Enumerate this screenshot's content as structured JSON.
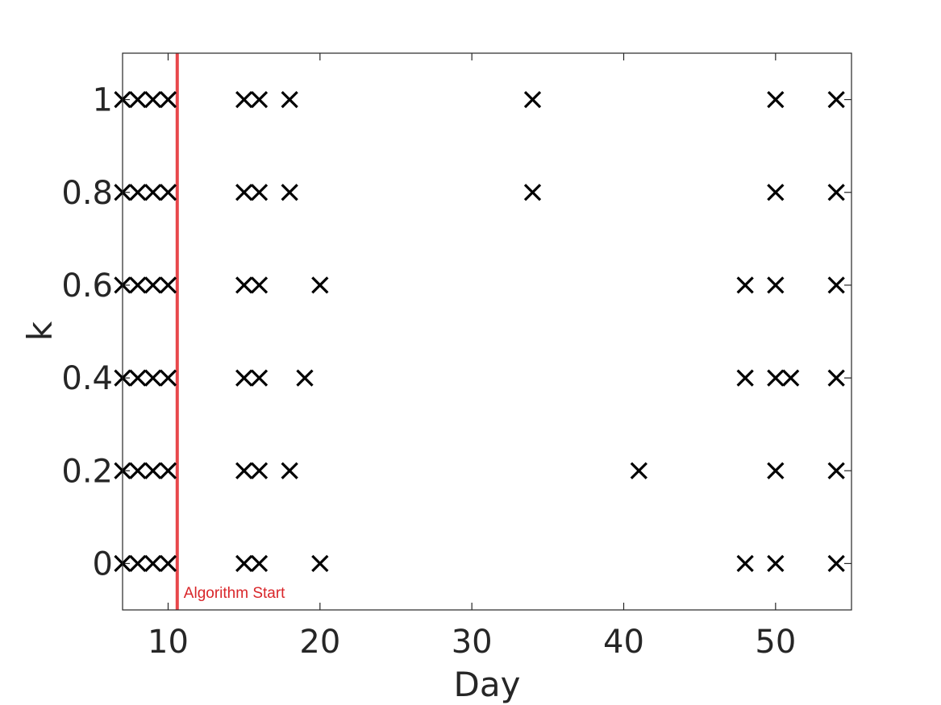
{
  "chart_data": {
    "type": "scatter",
    "title": "",
    "xlabel": "Day",
    "ylabel": "k",
    "xlim": [
      7,
      55
    ],
    "ylim": [
      -0.1,
      1.1
    ],
    "xticks": [
      10,
      20,
      30,
      40,
      50
    ],
    "yticks": [
      0,
      0.2,
      0.4,
      0.6,
      0.8,
      1
    ],
    "ytick_labels": [
      "0",
      "0.2",
      "0.4",
      "0.6",
      "0.8",
      "1"
    ],
    "grid": false,
    "marker": "x",
    "marker_color": "#000000",
    "points": [
      {
        "x": 7,
        "y": 0
      },
      {
        "x": 8,
        "y": 0
      },
      {
        "x": 9,
        "y": 0
      },
      {
        "x": 10,
        "y": 0
      },
      {
        "x": 15,
        "y": 0
      },
      {
        "x": 16,
        "y": 0
      },
      {
        "x": 20,
        "y": 0
      },
      {
        "x": 48,
        "y": 0
      },
      {
        "x": 50,
        "y": 0
      },
      {
        "x": 54,
        "y": 0
      },
      {
        "x": 7,
        "y": 0.2
      },
      {
        "x": 8,
        "y": 0.2
      },
      {
        "x": 9,
        "y": 0.2
      },
      {
        "x": 10,
        "y": 0.2
      },
      {
        "x": 15,
        "y": 0.2
      },
      {
        "x": 16,
        "y": 0.2
      },
      {
        "x": 18,
        "y": 0.2
      },
      {
        "x": 41,
        "y": 0.2
      },
      {
        "x": 50,
        "y": 0.2
      },
      {
        "x": 54,
        "y": 0.2
      },
      {
        "x": 7,
        "y": 0.4
      },
      {
        "x": 8,
        "y": 0.4
      },
      {
        "x": 9,
        "y": 0.4
      },
      {
        "x": 10,
        "y": 0.4
      },
      {
        "x": 15,
        "y": 0.4
      },
      {
        "x": 16,
        "y": 0.4
      },
      {
        "x": 19,
        "y": 0.4
      },
      {
        "x": 48,
        "y": 0.4
      },
      {
        "x": 50,
        "y": 0.4
      },
      {
        "x": 51,
        "y": 0.4
      },
      {
        "x": 54,
        "y": 0.4
      },
      {
        "x": 7,
        "y": 0.6
      },
      {
        "x": 8,
        "y": 0.6
      },
      {
        "x": 9,
        "y": 0.6
      },
      {
        "x": 10,
        "y": 0.6
      },
      {
        "x": 15,
        "y": 0.6
      },
      {
        "x": 16,
        "y": 0.6
      },
      {
        "x": 20,
        "y": 0.6
      },
      {
        "x": 48,
        "y": 0.6
      },
      {
        "x": 50,
        "y": 0.6
      },
      {
        "x": 54,
        "y": 0.6
      },
      {
        "x": 7,
        "y": 0.8
      },
      {
        "x": 8,
        "y": 0.8
      },
      {
        "x": 9,
        "y": 0.8
      },
      {
        "x": 10,
        "y": 0.8
      },
      {
        "x": 15,
        "y": 0.8
      },
      {
        "x": 16,
        "y": 0.8
      },
      {
        "x": 18,
        "y": 0.8
      },
      {
        "x": 34,
        "y": 0.8
      },
      {
        "x": 50,
        "y": 0.8
      },
      {
        "x": 54,
        "y": 0.8
      },
      {
        "x": 7,
        "y": 1
      },
      {
        "x": 8,
        "y": 1
      },
      {
        "x": 9,
        "y": 1
      },
      {
        "x": 10,
        "y": 1
      },
      {
        "x": 15,
        "y": 1
      },
      {
        "x": 16,
        "y": 1
      },
      {
        "x": 18,
        "y": 1
      },
      {
        "x": 34,
        "y": 1
      },
      {
        "x": 50,
        "y": 1
      },
      {
        "x": 54,
        "y": 1
      }
    ],
    "annotations": [
      {
        "type": "vertical-line",
        "x": 10.6,
        "color": "#e8474b",
        "label": "Algorithm Start",
        "label_color": "#d9262a"
      }
    ]
  }
}
